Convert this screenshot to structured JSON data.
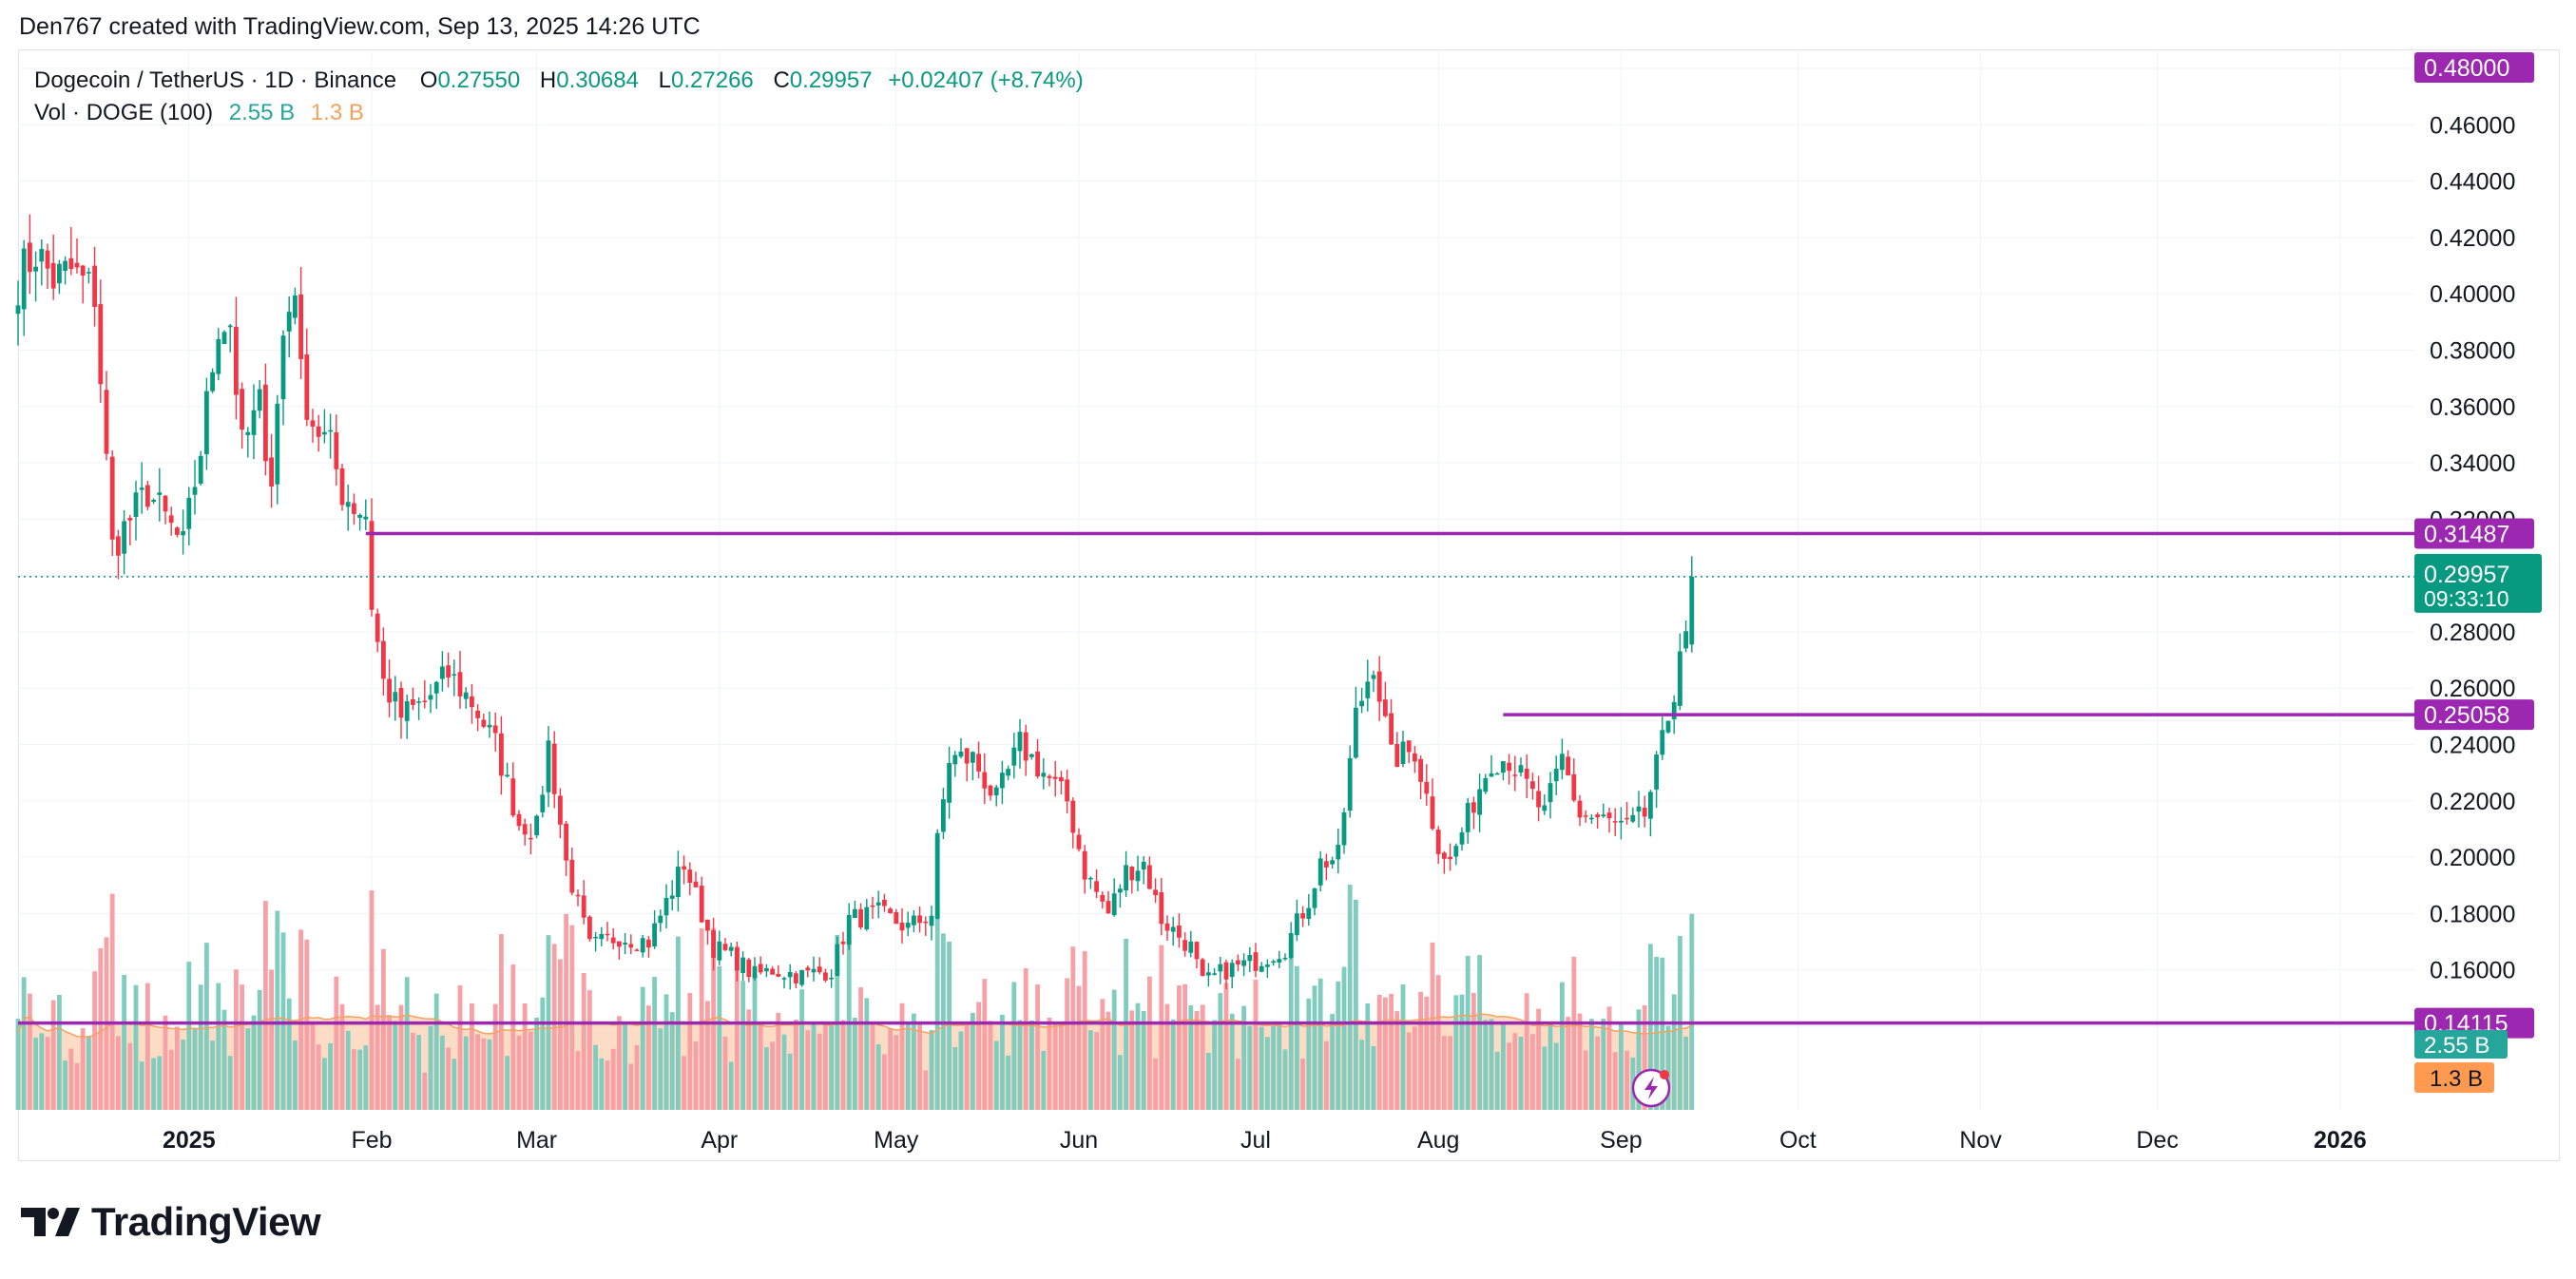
{
  "credit": "Den767 created with TradingView.com, Sep 13, 2025 14:26 UTC",
  "legend": {
    "symbol": "Dogecoin / TetherUS · 1D · Binance",
    "o_label": "O",
    "o_value": "0.27550",
    "h_label": "H",
    "h_value": "0.30684",
    "l_label": "L",
    "l_value": "0.27266",
    "c_label": "C",
    "c_value": "0.29957",
    "change": "+0.02407 (+8.74%)",
    "vol_label": "Vol · DOGE (100)",
    "vol_value": "2.55 B",
    "vol_ma_value": "1.3 B"
  },
  "brand": {
    "name": "TradingView",
    "icon": "tradingview-logo-icon"
  },
  "colors": {
    "up": "#089981",
    "down": "#f23645",
    "vol_up": "#80ccbf",
    "vol_down": "#f7a0a6",
    "vol_ma_fill": "#fbd0b2",
    "vol_ma_line": "#f7a25c",
    "level_line": "#9c27b0",
    "last_price": "#089981",
    "grid": "#f0f3fa",
    "axis_text": "#131722"
  },
  "chart_data": {
    "type": "candlestick",
    "symbol": "DOGEUSDT",
    "interval": "1D",
    "ylim": [
      0.13,
      0.48
    ],
    "y_ticks": [
      0.48,
      0.46,
      0.44,
      0.42,
      0.4,
      0.38,
      0.36,
      0.34,
      0.32,
      0.3,
      0.28,
      0.26,
      0.24,
      0.22,
      0.2,
      0.18,
      0.16,
      0.14
    ],
    "y_tick_labels": [
      "0.48000",
      "0.46000",
      "0.44000",
      "0.42000",
      "0.40000",
      "0.38000",
      "0.36000",
      "0.34000",
      "0.32000",
      "0.30000",
      "0.28000",
      "0.26000",
      "0.24000",
      "0.22000",
      "0.20000",
      "0.18000",
      "0.16000",
      "0.14000"
    ],
    "x_start": "2024-12-03",
    "x_end": "2026-02-15",
    "x_labels": [
      {
        "date": "2025-01-01",
        "label": "2025",
        "bold": true
      },
      {
        "date": "2025-02-01",
        "label": "Feb"
      },
      {
        "date": "2025-03-01",
        "label": "Mar"
      },
      {
        "date": "2025-04-01",
        "label": "Apr"
      },
      {
        "date": "2025-05-01",
        "label": "May"
      },
      {
        "date": "2025-06-01",
        "label": "Jun"
      },
      {
        "date": "2025-07-01",
        "label": "Jul"
      },
      {
        "date": "2025-08-01",
        "label": "Aug"
      },
      {
        "date": "2025-09-01",
        "label": "Sep"
      },
      {
        "date": "2025-10-01",
        "label": "Oct"
      },
      {
        "date": "2025-11-01",
        "label": "Nov"
      },
      {
        "date": "2025-12-01",
        "label": "Dec"
      },
      {
        "date": "2026-01-01",
        "label": "2026",
        "bold": true
      }
    ],
    "horizontal_levels": [
      {
        "price": 0.31487,
        "label": "0.31487",
        "from": "2025-01-31"
      },
      {
        "price": 0.25058,
        "label": "0.25058",
        "from": "2025-08-12"
      },
      {
        "price": 0.14115,
        "label": "0.14115",
        "from": "2024-12-03"
      }
    ],
    "top_label": "0.48000",
    "last_price": {
      "value": 0.29957,
      "label": "0.29957",
      "countdown": "09:33:10"
    },
    "volume_labels": {
      "volume": "2.55 B",
      "volume_ma": "1.3 B"
    },
    "close_anchors": [
      [
        "2024-12-03",
        0.405
      ],
      [
        "2024-12-06",
        0.415
      ],
      [
        "2024-12-09",
        0.405
      ],
      [
        "2024-12-12",
        0.408
      ],
      [
        "2024-12-16",
        0.4
      ],
      [
        "2024-12-19",
        0.31
      ],
      [
        "2024-12-22",
        0.32
      ],
      [
        "2024-12-25",
        0.33
      ],
      [
        "2024-12-28",
        0.32
      ],
      [
        "2024-12-31",
        0.31
      ],
      [
        "2025-01-03",
        0.345
      ],
      [
        "2025-01-06",
        0.39
      ],
      [
        "2025-01-08",
        0.39
      ],
      [
        "2025-01-10",
        0.345
      ],
      [
        "2025-01-13",
        0.36
      ],
      [
        "2025-01-15",
        0.335
      ],
      [
        "2025-01-17",
        0.385
      ],
      [
        "2025-01-19",
        0.405
      ],
      [
        "2025-01-20",
        0.37
      ],
      [
        "2025-01-22",
        0.355
      ],
      [
        "2025-01-25",
        0.345
      ],
      [
        "2025-01-27",
        0.33
      ],
      [
        "2025-01-29",
        0.325
      ],
      [
        "2025-01-31",
        0.322
      ],
      [
        "2025-02-01",
        0.29
      ],
      [
        "2025-02-03",
        0.262
      ],
      [
        "2025-02-06",
        0.25
      ],
      [
        "2025-02-10",
        0.255
      ],
      [
        "2025-02-14",
        0.265
      ],
      [
        "2025-02-18",
        0.255
      ],
      [
        "2025-02-22",
        0.24
      ],
      [
        "2025-02-26",
        0.212
      ],
      [
        "2025-03-01",
        0.21
      ],
      [
        "2025-03-03",
        0.24
      ],
      [
        "2025-03-06",
        0.198
      ],
      [
        "2025-03-10",
        0.168
      ],
      [
        "2025-03-15",
        0.172
      ],
      [
        "2025-03-20",
        0.17
      ],
      [
        "2025-03-26",
        0.198
      ],
      [
        "2025-03-31",
        0.168
      ],
      [
        "2025-04-03",
        0.165
      ],
      [
        "2025-04-07",
        0.158
      ],
      [
        "2025-04-10",
        0.16
      ],
      [
        "2025-04-15",
        0.158
      ],
      [
        "2025-04-20",
        0.16
      ],
      [
        "2025-04-23",
        0.178
      ],
      [
        "2025-04-28",
        0.18
      ],
      [
        "2025-05-03",
        0.175
      ],
      [
        "2025-05-07",
        0.18
      ],
      [
        "2025-05-08",
        0.205
      ],
      [
        "2025-05-10",
        0.235
      ],
      [
        "2025-05-14",
        0.235
      ],
      [
        "2025-05-18",
        0.22
      ],
      [
        "2025-05-22",
        0.24
      ],
      [
        "2025-05-26",
        0.23
      ],
      [
        "2025-05-30",
        0.22
      ],
      [
        "2025-06-02",
        0.195
      ],
      [
        "2025-06-06",
        0.18
      ],
      [
        "2025-06-09",
        0.195
      ],
      [
        "2025-06-12",
        0.198
      ],
      [
        "2025-06-15",
        0.178
      ],
      [
        "2025-06-20",
        0.168
      ],
      [
        "2025-06-22",
        0.155
      ],
      [
        "2025-06-26",
        0.16
      ],
      [
        "2025-07-01",
        0.163
      ],
      [
        "2025-07-06",
        0.168
      ],
      [
        "2025-07-10",
        0.185
      ],
      [
        "2025-07-12",
        0.198
      ],
      [
        "2025-07-15",
        0.2
      ],
      [
        "2025-07-18",
        0.25
      ],
      [
        "2025-07-21",
        0.27
      ],
      [
        "2025-07-24",
        0.235
      ],
      [
        "2025-07-28",
        0.238
      ],
      [
        "2025-08-01",
        0.205
      ],
      [
        "2025-08-03",
        0.198
      ],
      [
        "2025-08-07",
        0.22
      ],
      [
        "2025-08-10",
        0.235
      ],
      [
        "2025-08-13",
        0.235
      ],
      [
        "2025-08-16",
        0.225
      ],
      [
        "2025-08-19",
        0.215
      ],
      [
        "2025-08-22",
        0.235
      ],
      [
        "2025-08-25",
        0.215
      ],
      [
        "2025-08-29",
        0.213
      ],
      [
        "2025-09-02",
        0.21
      ],
      [
        "2025-09-05",
        0.215
      ],
      [
        "2025-09-08",
        0.24
      ],
      [
        "2025-09-10",
        0.26
      ],
      [
        "2025-09-11",
        0.275
      ],
      [
        "2025-09-12",
        0.2755
      ],
      [
        "2025-09-13",
        0.29957
      ]
    ]
  }
}
